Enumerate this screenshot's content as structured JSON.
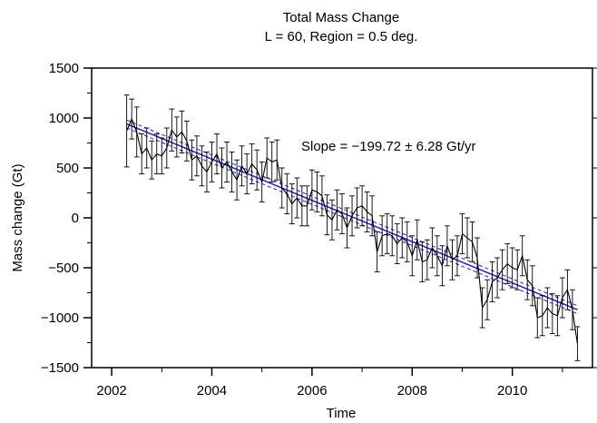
{
  "chart_data": {
    "type": "line",
    "title": "Total Mass Change",
    "subtitle": "L = 60, Region = 0.5 deg.",
    "xlabel": "Time",
    "ylabel": "Mass change (Gt)",
    "xlim": [
      2001.6,
      2011.6
    ],
    "ylim": [
      -1500,
      1500
    ],
    "x_ticks": [
      2002,
      2004,
      2006,
      2008,
      2010
    ],
    "y_ticks": [
      -1500,
      -1000,
      -500,
      0,
      500,
      1000,
      1500
    ],
    "annotation": "Slope = −199.72 ± 6.28 Gt/yr",
    "grid": false,
    "colors": {
      "data": "#000000",
      "trend": "#1f1fd6",
      "trend_bounds": "#1f1fd6"
    },
    "series": [
      {
        "x": [
          2002.3,
          2002.4,
          2002.5,
          2002.6,
          2002.7,
          2002.8,
          2002.9,
          2003.0,
          2003.1,
          2003.2,
          2003.3,
          2003.4,
          2003.5,
          2003.6,
          2003.7,
          2003.8,
          2003.9,
          2004.0,
          2004.1,
          2004.2,
          2004.3,
          2004.4,
          2004.5,
          2004.6,
          2004.7,
          2004.8,
          2004.9,
          2005.0,
          2005.1,
          2005.2,
          2005.3,
          2005.4,
          2005.5,
          2005.6,
          2005.7,
          2005.8,
          2005.9,
          2006.0,
          2006.1,
          2006.2,
          2006.3,
          2006.4,
          2006.5,
          2006.6,
          2006.7,
          2006.8,
          2006.9,
          2007.0,
          2007.1,
          2007.2,
          2007.3,
          2007.4,
          2007.5,
          2007.6,
          2007.7,
          2007.8,
          2007.9,
          2008.0,
          2008.1,
          2008.2,
          2008.3,
          2008.4,
          2008.5,
          2008.6,
          2008.7,
          2008.8,
          2008.9,
          2009.0,
          2009.1,
          2009.2,
          2009.3,
          2009.4,
          2009.5,
          2009.6,
          2009.7,
          2009.8,
          2009.9,
          2010.0,
          2010.1,
          2010.2,
          2010.3,
          2010.4,
          2010.5,
          2010.6,
          2010.7,
          2010.8,
          2010.9,
          2011.0,
          2011.1,
          2011.2,
          2011.3
        ],
        "values": [
          870,
          990,
          860,
          640,
          700,
          580,
          640,
          620,
          700,
          880,
          810,
          860,
          770,
          580,
          620,
          520,
          460,
          560,
          640,
          500,
          560,
          460,
          380,
          520,
          440,
          540,
          480,
          360,
          600,
          560,
          580,
          300,
          240,
          140,
          200,
          120,
          120,
          280,
          260,
          220,
          30,
          -20,
          80,
          40,
          -100,
          20,
          100,
          120,
          60,
          20,
          -340,
          -180,
          -160,
          -180,
          -260,
          -200,
          -240,
          -380,
          -220,
          -440,
          -420,
          -300,
          -380,
          -480,
          -280,
          -420,
          -380,
          -160,
          -200,
          -240,
          -400,
          -900,
          -820,
          -640,
          -600,
          -520,
          -460,
          -500,
          -520,
          -380,
          -620,
          -680,
          -1000,
          -980,
          -900,
          -960,
          -980,
          -800,
          -720,
          -920,
          -1260
        ],
        "errors": [
          360,
          200,
          250,
          200,
          200,
          190,
          200,
          180,
          200,
          210,
          200,
          210,
          200,
          200,
          200,
          200,
          200,
          200,
          200,
          200,
          200,
          200,
          200,
          200,
          200,
          200,
          200,
          200,
          200,
          200,
          200,
          200,
          200,
          200,
          200,
          200,
          200,
          200,
          200,
          200,
          200,
          200,
          200,
          200,
          200,
          200,
          200,
          200,
          200,
          200,
          200,
          200,
          200,
          200,
          200,
          200,
          200,
          200,
          200,
          200,
          200,
          200,
          200,
          200,
          200,
          200,
          200,
          200,
          200,
          200,
          200,
          200,
          200,
          200,
          200,
          200,
          200,
          200,
          200,
          200,
          200,
          200,
          200,
          200,
          200,
          200,
          200,
          200,
          200,
          200,
          170
        ]
      }
    ],
    "trend": {
      "x": [
        2002.3,
        2011.3
      ],
      "values": [
        940,
        -920
      ],
      "upper": [
        980,
        -880
      ],
      "lower": [
        900,
        -960
      ]
    }
  }
}
